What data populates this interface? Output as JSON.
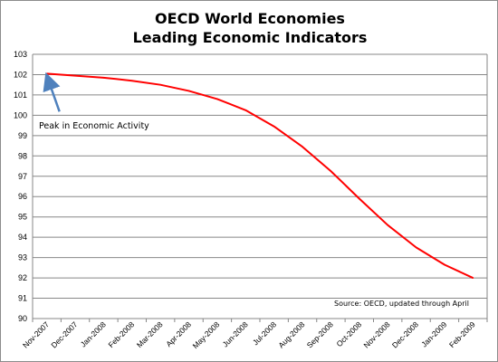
{
  "chart_data": {
    "type": "line",
    "title_line1": "OECD World Economies",
    "title_line2": "Leading Economic Indicators",
    "xlabel": "",
    "ylabel": "",
    "categories": [
      "Nov-2007",
      "Dec-2007",
      "Jan-2008",
      "Feb-2008",
      "Mar-2008",
      "Apr-2008",
      "May-2008",
      "Jun-2008",
      "Jul-2008",
      "Aug-2008",
      "Sep-2008",
      "Oct-2008",
      "Nov-2008",
      "Dec-2008",
      "Jan-2009",
      "Feb-2009"
    ],
    "series": [
      {
        "color": "#ff0000",
        "values": [
          102.05,
          101.95,
          101.85,
          101.7,
          101.5,
          101.2,
          100.8,
          100.25,
          99.45,
          98.45,
          97.25,
          95.9,
          94.6,
          93.5,
          92.65,
          92.0
        ]
      }
    ],
    "ylim": [
      90,
      103
    ],
    "yticks": [
      "90",
      "91",
      "92",
      "93",
      "94",
      "95",
      "96",
      "97",
      "98",
      "99",
      "100",
      "101",
      "102",
      "103"
    ],
    "grid": true,
    "annotations": {
      "peak_label": "Peak in Economic Activity",
      "source": "Source:  OECD, updated through April"
    }
  },
  "colors": {
    "line": "#ff0000",
    "arrow": "#4f81bd",
    "grid": "#878787"
  }
}
